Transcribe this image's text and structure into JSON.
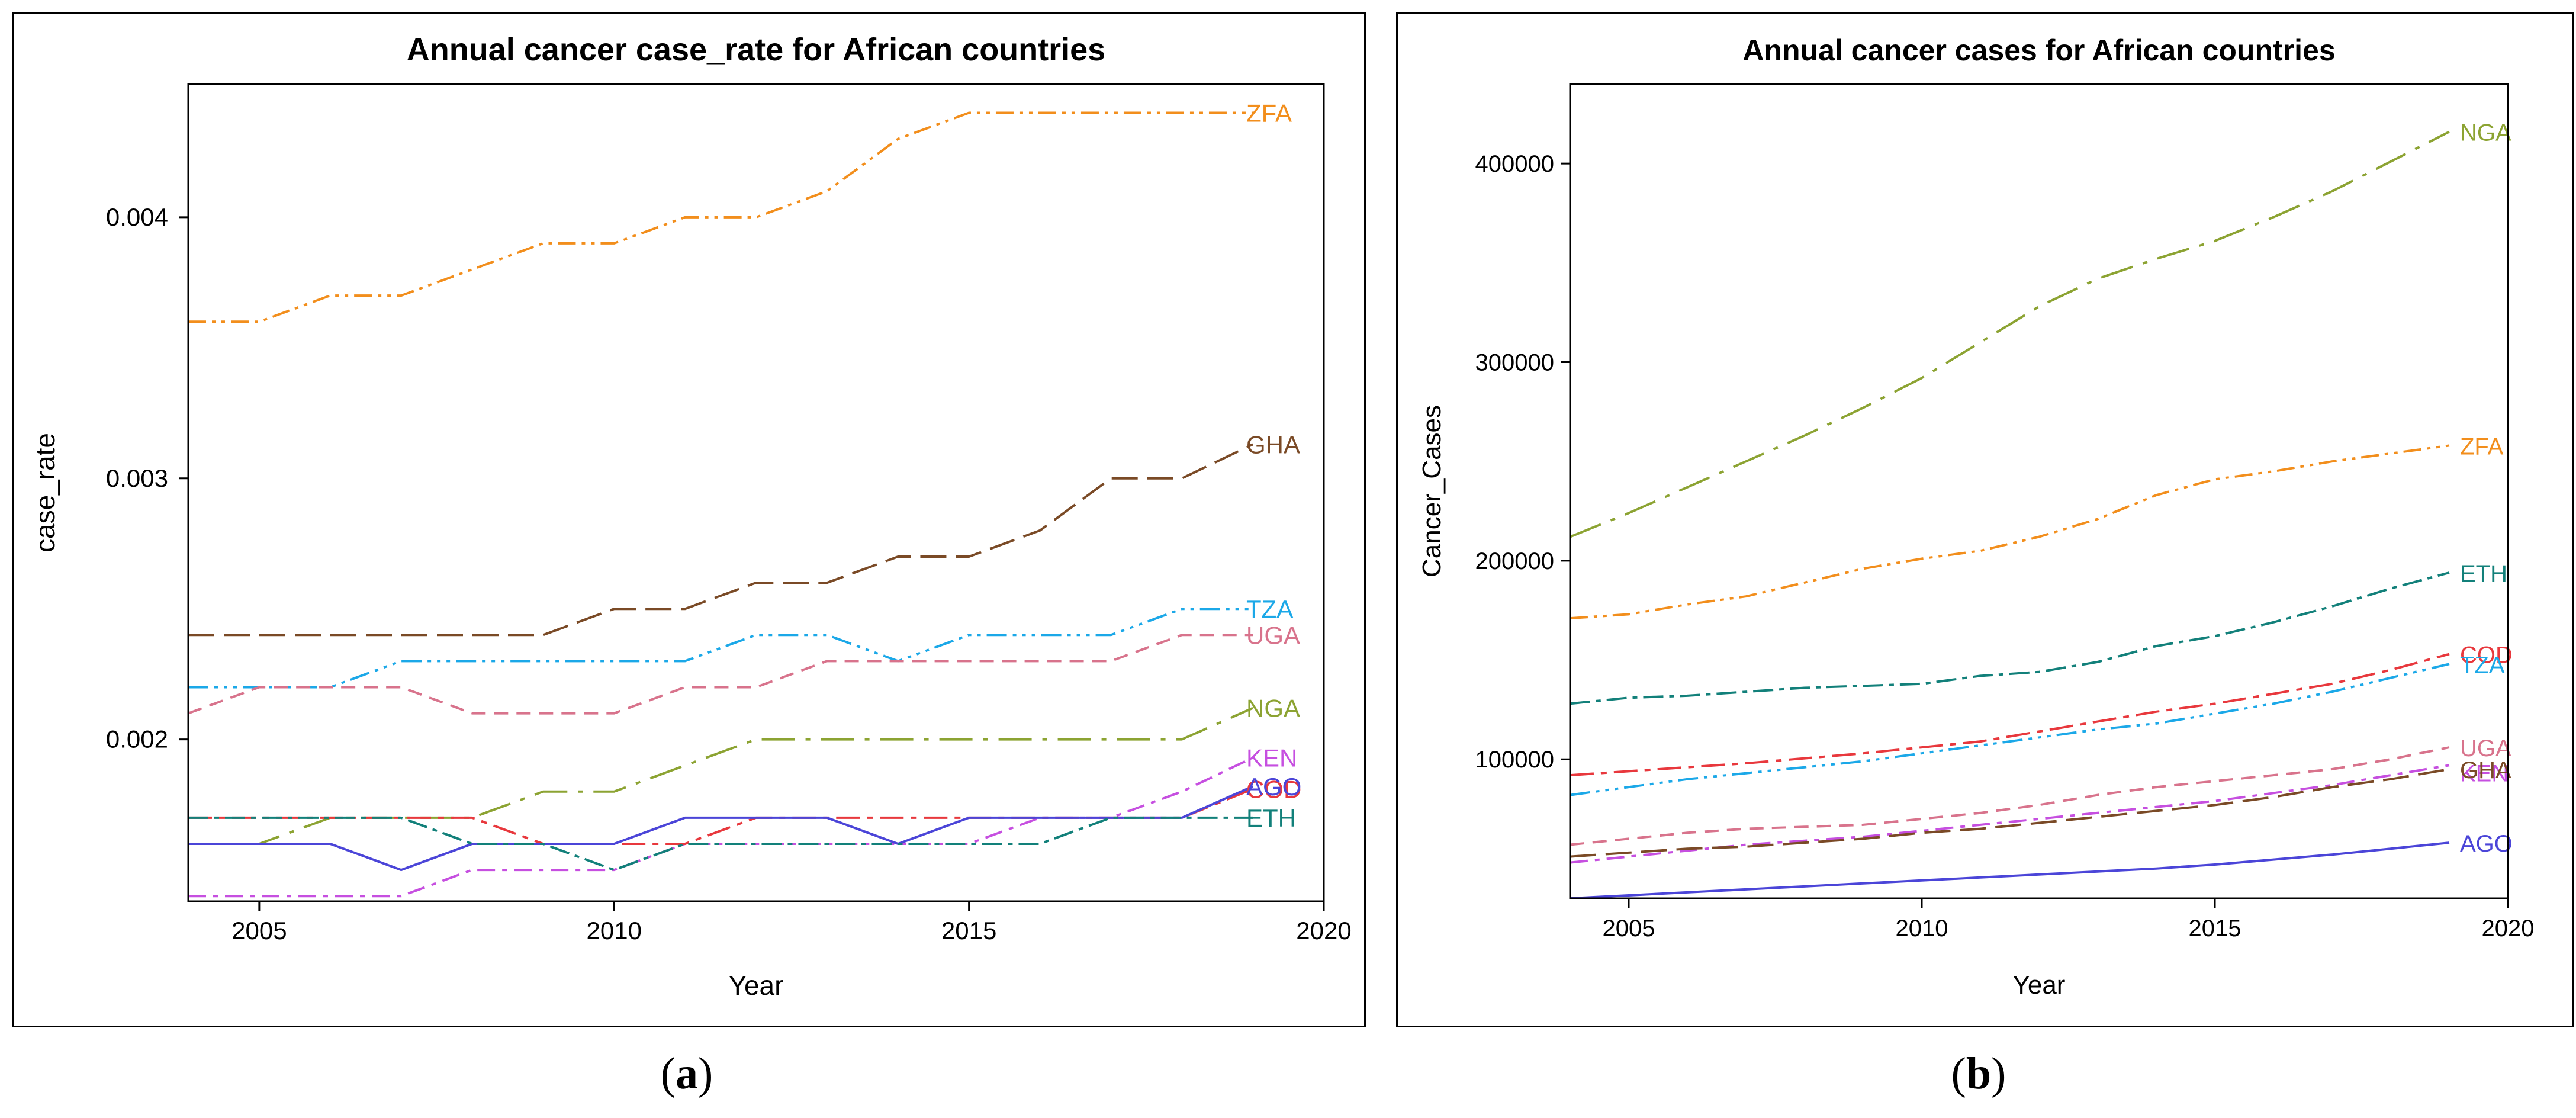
{
  "panel_labels": {
    "a": {
      "open": "(",
      "letter": "a",
      "close": ")"
    },
    "b": {
      "open": "(",
      "letter": "b",
      "close": ")"
    }
  },
  "chart_data": [
    {
      "type": "line",
      "title": "Annual cancer case_rate for African countries",
      "xlabel": "Year",
      "ylabel": "case_rate",
      "xlim": [
        2004,
        2020
      ],
      "ylim": [
        0.00138,
        0.00451
      ],
      "xticks": [
        2005,
        2010,
        2015,
        2020
      ],
      "yticks": [
        0.002,
        0.003,
        0.004
      ],
      "ytick_labels": [
        "0.002",
        "0.003",
        "0.004"
      ],
      "x": [
        2004,
        2005,
        2006,
        2007,
        2008,
        2009,
        2010,
        2011,
        2012,
        2013,
        2014,
        2015,
        2016,
        2017,
        2018,
        2019
      ],
      "series": [
        {
          "name": "ZFA",
          "color": "#F28E1C",
          "dash": "d1",
          "label_offset": 0,
          "values": [
            0.0036,
            0.0036,
            0.0037,
            0.0037,
            0.0038,
            0.0039,
            0.0039,
            0.004,
            0.004,
            0.0041,
            0.0043,
            0.0044,
            0.0044,
            0.0044,
            0.0044,
            0.0044
          ]
        },
        {
          "name": "GHA",
          "color": "#7A4A26",
          "dash": "d2",
          "label_offset": 0,
          "values": [
            0.0024,
            0.0024,
            0.0024,
            0.0024,
            0.0024,
            0.0024,
            0.0025,
            0.0025,
            0.0026,
            0.0026,
            0.0027,
            0.0027,
            0.0028,
            0.003,
            0.003,
            0.00313
          ]
        },
        {
          "name": "TZA",
          "color": "#1BA8E8",
          "dash": "d3",
          "label_offset": 0,
          "values": [
            0.0022,
            0.0022,
            0.0022,
            0.0023,
            0.0023,
            0.0023,
            0.0023,
            0.0023,
            0.0024,
            0.0024,
            0.0023,
            0.0024,
            0.0024,
            0.0024,
            0.0025,
            0.0025
          ]
        },
        {
          "name": "UGA",
          "color": "#D8738C",
          "dash": "d4",
          "label_offset": 0,
          "values": [
            0.0021,
            0.0022,
            0.0022,
            0.0022,
            0.0021,
            0.0021,
            0.0021,
            0.0022,
            0.0022,
            0.0023,
            0.0023,
            0.0023,
            0.0023,
            0.0023,
            0.0024,
            0.0024
          ]
        },
        {
          "name": "NGA",
          "color": "#8CA332",
          "dash": "d5",
          "label_offset": 0,
          "values": [
            0.0016,
            0.0016,
            0.0017,
            0.0017,
            0.0017,
            0.0018,
            0.0018,
            0.0019,
            0.002,
            0.002,
            0.002,
            0.002,
            0.002,
            0.002,
            0.002,
            0.00212
          ]
        },
        {
          "name": "KEN",
          "color": "#C64FE0",
          "dash": "d6",
          "label_offset": 0,
          "values": [
            0.0014,
            0.0014,
            0.0014,
            0.0014,
            0.0015,
            0.0015,
            0.0015,
            0.0016,
            0.0016,
            0.0016,
            0.0016,
            0.0016,
            0.0017,
            0.0017,
            0.0018,
            0.00193
          ]
        },
        {
          "name": "COD",
          "color": "#E8383D",
          "dash": "d7",
          "label_offset": 0,
          "values": [
            0.0017,
            0.0017,
            0.0017,
            0.0017,
            0.0017,
            0.0016,
            0.0016,
            0.0016,
            0.0017,
            0.0017,
            0.0017,
            0.0017,
            0.0017,
            0.0017,
            0.0017,
            0.00181
          ]
        },
        {
          "name": "AGO",
          "color": "#4B45D8",
          "dash": "solid",
          "label_offset": 0,
          "values": [
            0.0016,
            0.0016,
            0.0016,
            0.0015,
            0.0016,
            0.0016,
            0.0016,
            0.0017,
            0.0017,
            0.0017,
            0.0016,
            0.0017,
            0.0017,
            0.0017,
            0.0017,
            0.00182
          ]
        },
        {
          "name": "ETH",
          "color": "#12807A",
          "dash": "d8",
          "label_offset": 0,
          "values": [
            0.0017,
            0.0017,
            0.0017,
            0.0017,
            0.0016,
            0.0016,
            0.0015,
            0.0016,
            0.0016,
            0.0016,
            0.0016,
            0.0016,
            0.0016,
            0.0017,
            0.0017,
            0.0017
          ]
        }
      ]
    },
    {
      "type": "line",
      "title": "Annual cancer cases for African countries",
      "xlabel": "Year",
      "ylabel": "Cancer_Cases",
      "xlim": [
        2004,
        2020
      ],
      "ylim": [
        30000,
        440000
      ],
      "xticks": [
        2005,
        2010,
        2015,
        2020
      ],
      "yticks": [
        100000,
        200000,
        300000,
        400000
      ],
      "ytick_labels": [
        "100000",
        "200000",
        "300000",
        "400000"
      ],
      "x": [
        2004,
        2005,
        2006,
        2007,
        2008,
        2009,
        2010,
        2011,
        2012,
        2013,
        2014,
        2015,
        2016,
        2017,
        2018,
        2019
      ],
      "series": [
        {
          "name": "NGA",
          "color": "#8CA332",
          "dash": "d5",
          "label_offset": 0,
          "values": [
            212000,
            224000,
            237000,
            250000,
            263000,
            277000,
            292000,
            310000,
            328000,
            342000,
            352000,
            361000,
            373000,
            386000,
            401000,
            416000
          ]
        },
        {
          "name": "ZFA",
          "color": "#F28E1C",
          "dash": "d1",
          "label_offset": 0,
          "values": [
            171000,
            173000,
            178000,
            182000,
            189000,
            196000,
            201000,
            205000,
            212000,
            221000,
            233000,
            241000,
            245000,
            250000,
            254000,
            258000
          ]
        },
        {
          "name": "ETH",
          "color": "#12807A",
          "dash": "d8",
          "label_offset": 0,
          "values": [
            128000,
            131000,
            132000,
            134000,
            136000,
            137000,
            138000,
            142000,
            144000,
            149000,
            157000,
            162000,
            169000,
            177000,
            186000,
            194000
          ]
        },
        {
          "name": "COD",
          "color": "#E8383D",
          "dash": "d7",
          "label_offset": 0,
          "values": [
            92000,
            94000,
            96000,
            98000,
            100500,
            103000,
            106000,
            109000,
            114000,
            119000,
            124000,
            128000,
            133000,
            138000,
            145000,
            153000
          ]
        },
        {
          "name": "TZA",
          "color": "#1BA8E8",
          "dash": "d3",
          "label_offset": 0,
          "values": [
            82000,
            86000,
            90000,
            93000,
            96000,
            99000,
            103000,
            107000,
            111000,
            115000,
            118000,
            123000,
            128000,
            134000,
            141000,
            148000
          ]
        },
        {
          "name": "UGA",
          "color": "#D8738C",
          "dash": "d4",
          "label_offset": 0,
          "values": [
            57000,
            60000,
            63000,
            65000,
            66000,
            67000,
            70000,
            73000,
            77000,
            82000,
            86000,
            89000,
            92000,
            95000,
            100000,
            106000
          ]
        },
        {
          "name": "KEN",
          "color": "#C64FE0",
          "dash": "d6",
          "label_offset": 12,
          "values": [
            48000,
            51000,
            54000,
            57000,
            59000,
            61000,
            64000,
            67000,
            70000,
            73000,
            76000,
            79000,
            83000,
            87000,
            92000,
            97000
          ]
        },
        {
          "name": "GHA",
          "color": "#7A4A26",
          "dash": "d2",
          "label_offset": 0,
          "values": [
            51000,
            53000,
            55000,
            56000,
            58000,
            60000,
            63000,
            65000,
            68000,
            71000,
            74000,
            77000,
            81000,
            86000,
            90000,
            95000
          ]
        },
        {
          "name": "AGO",
          "color": "#4B45D8",
          "dash": "solid",
          "label_offset": 0,
          "values": [
            30000,
            31500,
            33000,
            34500,
            36000,
            37500,
            39000,
            40500,
            42000,
            43500,
            45000,
            47000,
            49500,
            52000,
            55000,
            58000
          ]
        }
      ]
    }
  ]
}
